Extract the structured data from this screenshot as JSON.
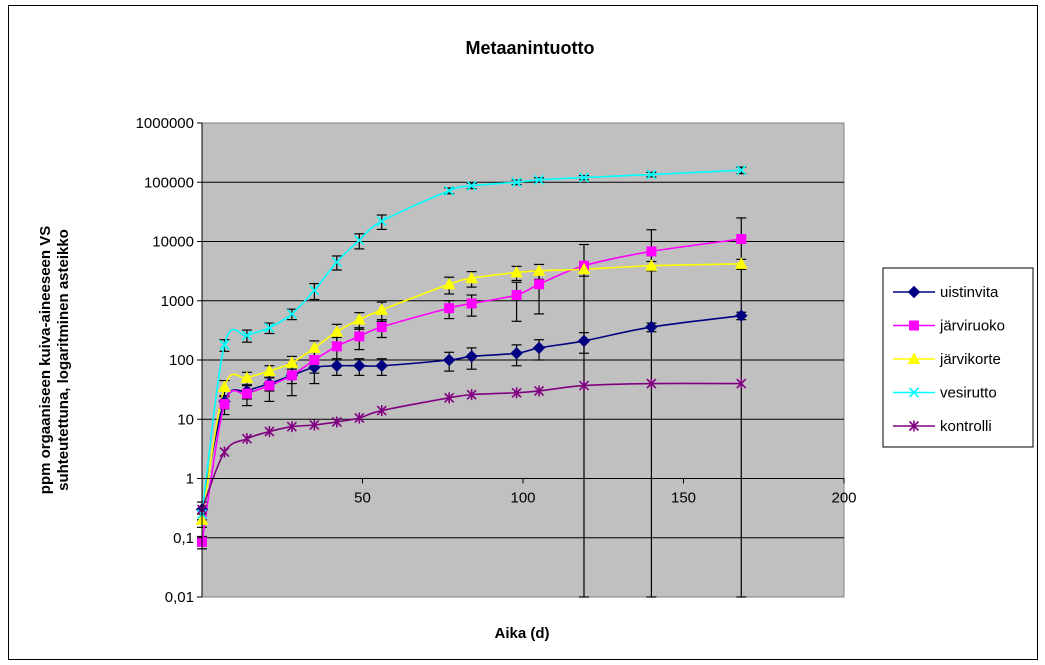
{
  "chart_data": {
    "type": "line",
    "title": "Metaanintuotto",
    "xlabel": "Aika (d)",
    "ylabel": [
      "ppm orgaaniseen kuiva-aineeseen VS",
      "suhteutettuna, logaritminen asteikko"
    ],
    "xlim": [
      0,
      200
    ],
    "ylim": [
      0.01,
      1000000
    ],
    "yscale": "log",
    "x_ticks": [
      50,
      100,
      150,
      200
    ],
    "x_tick_labels": [
      "50",
      "100",
      "150",
      "200"
    ],
    "y_ticks": [
      0.01,
      0.1,
      1,
      10,
      100,
      1000,
      10000,
      100000,
      1000000
    ],
    "y_tick_labels": [
      "0,01",
      "0,1",
      "1",
      "10",
      "100",
      "1000",
      "10000",
      "100000",
      "1000000"
    ],
    "grid": "horizontal",
    "plot_background": "#c0c0c0",
    "legend_position": "right",
    "series": [
      {
        "name": "uistinvita",
        "color": "#000080",
        "marker": "diamond",
        "x": [
          0,
          7,
          14,
          21,
          28,
          35,
          42,
          49,
          56,
          77,
          84,
          98,
          105,
          119,
          140,
          168
        ],
        "y": [
          0.3,
          20,
          30,
          40,
          55,
          75,
          80,
          80,
          80,
          100,
          115,
          130,
          160,
          210,
          360,
          560
        ],
        "err": [
          0.1,
          5,
          8,
          10,
          15,
          35,
          25,
          25,
          25,
          35,
          45,
          50,
          60,
          80,
          60,
          80
        ]
      },
      {
        "name": "järviruoko",
        "color": "#ff00ff",
        "marker": "square",
        "x": [
          0,
          7,
          14,
          21,
          28,
          35,
          42,
          49,
          56,
          77,
          84,
          98,
          105,
          119,
          140,
          168
        ],
        "y": [
          0.085,
          18,
          27,
          37,
          55,
          100,
          170,
          250,
          360,
          750,
          900,
          1250,
          1900,
          3900,
          6800,
          11000
        ],
        "err": [
          0.02,
          6,
          10,
          17,
          30,
          40,
          70,
          100,
          120,
          250,
          350,
          800,
          1300,
          5000,
          9000,
          14000
        ]
      },
      {
        "name": "järvikorte",
        "color": "#ffff00",
        "marker": "triangle",
        "x": [
          0,
          7,
          14,
          21,
          28,
          35,
          42,
          49,
          56,
          77,
          84,
          98,
          105,
          119,
          140,
          168
        ],
        "y": [
          0.2,
          35,
          50,
          65,
          90,
          160,
          300,
          480,
          700,
          1900,
          2400,
          3000,
          3200,
          3400,
          3900,
          4200
        ],
        "err": [
          0.05,
          10,
          12,
          15,
          25,
          50,
          100,
          150,
          250,
          600,
          700,
          800,
          900,
          800,
          700,
          800
        ]
      },
      {
        "name": "vesirutto",
        "color": "#00ffff",
        "marker": "x",
        "x": [
          0,
          7,
          14,
          21,
          28,
          35,
          42,
          49,
          56,
          77,
          84,
          98,
          105,
          119,
          140,
          168
        ],
        "y": [
          0.25,
          180,
          260,
          350,
          600,
          1500,
          4500,
          10500,
          22000,
          72000,
          87000,
          100000,
          110000,
          120000,
          135000,
          160000
        ],
        "err": [
          0.05,
          40,
          60,
          70,
          120,
          450,
          1200,
          3000,
          6000,
          8000,
          9000,
          9000,
          9000,
          10000,
          12000,
          20000
        ]
      },
      {
        "name": "kontrolli",
        "color": "#800080",
        "marker": "star",
        "x": [
          0,
          7,
          14,
          21,
          28,
          35,
          42,
          49,
          56,
          77,
          84,
          98,
          105,
          119,
          140,
          168
        ],
        "y": [
          0.3,
          2.8,
          4.7,
          6.2,
          7.5,
          8,
          9,
          10.5,
          14,
          23,
          26,
          28,
          30,
          37,
          40,
          40
        ],
        "err": [
          0,
          0,
          0,
          0,
          0,
          0,
          0,
          0,
          0,
          0,
          0,
          0,
          0,
          0,
          0,
          0
        ]
      }
    ]
  }
}
